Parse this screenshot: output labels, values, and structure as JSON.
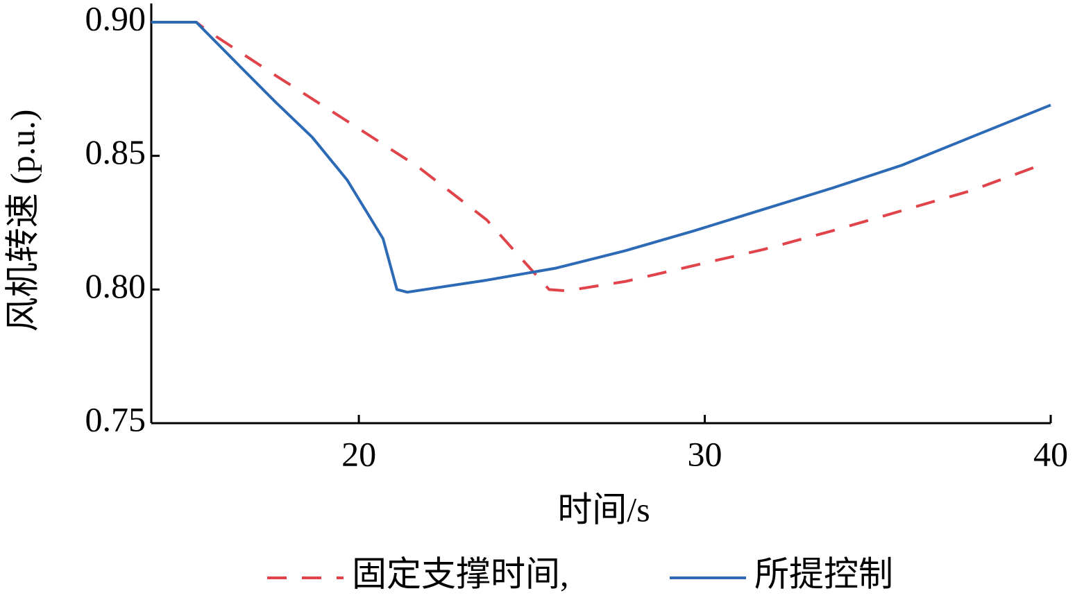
{
  "chart_data": {
    "type": "line",
    "xlabel": "时间/s",
    "ylabel": "风机转速 (p.u.)",
    "xlim": [
      14,
      40
    ],
    "xticks": [
      20,
      30,
      40
    ],
    "ylim": [
      0.75,
      0.907
    ],
    "yticks": [
      {
        "value": 0.75,
        "label": "0.75"
      },
      {
        "value": 0.8,
        "label": "0.80"
      },
      {
        "value": 0.85,
        "label": "0.85"
      },
      {
        "value": 0.9,
        "label": "0.90"
      }
    ],
    "grid": false,
    "legend": "bottom",
    "series": [
      {
        "name": "固定支撑时间,",
        "color": "#e0434a",
        "dash": true,
        "x": [
          14,
          15.3,
          15.6,
          17.6,
          19.66,
          21.7,
          23.7,
          25.5,
          26,
          27.7,
          29.7,
          31.7,
          33.7,
          35.7,
          37.7,
          39.8
        ],
        "values": [
          0.9,
          0.9,
          0.897,
          0.88,
          0.863,
          0.846,
          0.826,
          0.8,
          0.7995,
          0.803,
          0.809,
          0.815,
          0.822,
          0.8295,
          0.837,
          0.847
        ]
      },
      {
        "name": "所提控制",
        "color": "#2d6ab5",
        "dash": false,
        "x": [
          14,
          15.3,
          16.6,
          17.6,
          18.65,
          19.66,
          20.7,
          21.1,
          21.4,
          23.7,
          25.7,
          27.7,
          29.7,
          31.7,
          33.7,
          35.7,
          37.7,
          40
        ],
        "values": [
          0.9,
          0.9,
          0.883,
          0.87,
          0.857,
          0.841,
          0.819,
          0.8,
          0.799,
          0.8035,
          0.808,
          0.8145,
          0.822,
          0.83,
          0.838,
          0.8465,
          0.857,
          0.869
        ]
      }
    ]
  }
}
